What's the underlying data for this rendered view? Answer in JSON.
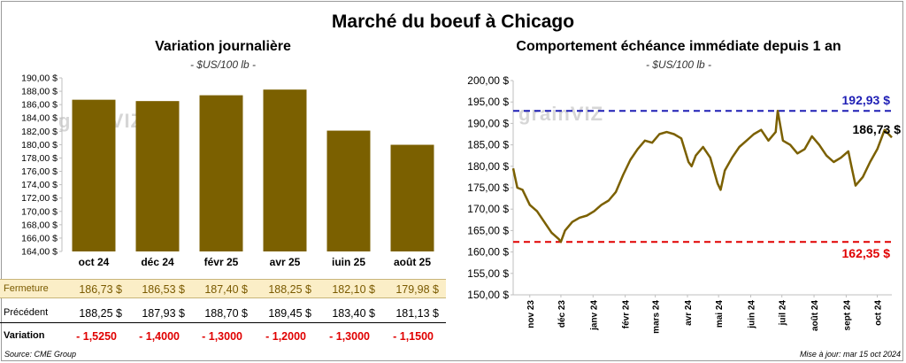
{
  "title": "Marché du boeuf à Chicago",
  "left": {
    "subtitle": "Variation journalière",
    "unit": "- $US/100 lb -",
    "watermark": "grainVIZ"
  },
  "right": {
    "subtitle": "Comportement échéance immédiate depuis 1 an",
    "unit": "- $US/100 lb -",
    "watermark": "grainVIZ",
    "max_label": "192,93 $",
    "last_label": "186,73 $",
    "min_label": "162,35 $"
  },
  "table": {
    "rows": [
      {
        "label": "Fermeture",
        "values": [
          "186,73  $",
          "186,53  $",
          "187,40  $",
          "188,25  $",
          "182,10  $",
          "179,98  $"
        ]
      },
      {
        "label": "Précédent",
        "values": [
          "188,25  $",
          "187,93  $",
          "188,70  $",
          "189,45  $",
          "183,40  $",
          "181,13  $"
        ]
      },
      {
        "label": "Variation",
        "values": [
          "- 1,5250",
          "- 1,4000",
          "- 1,3000",
          "- 1,2000",
          "- 1,3000",
          "- 1,1500"
        ]
      }
    ]
  },
  "footer": {
    "source": "Source: CME Group",
    "updated": "Mise à jour: mar 15 oct 2024"
  },
  "colors": {
    "bar": "#7b6000",
    "line": "#7b6000",
    "max_line": "#1f1fb5",
    "min_line": "#e00000",
    "close_row_bg": "#fbeec7"
  },
  "chart_data": [
    {
      "type": "bar",
      "title": "Variation journalière",
      "categories": [
        "oct 24",
        "déc 24",
        "févr 25",
        "avr 25",
        "juin 25",
        "août 25"
      ],
      "values": [
        186.73,
        186.53,
        187.4,
        188.25,
        182.1,
        179.98
      ],
      "ylim": [
        164,
        190
      ],
      "yticks": [
        "164,00 $",
        "166,00 $",
        "168,00 $",
        "170,00 $",
        "172,00 $",
        "174,00 $",
        "176,00 $",
        "178,00 $",
        "180,00 $",
        "182,00 $",
        "184,00 $",
        "186,00 $",
        "188,00 $",
        "190,00 $"
      ],
      "grid": false
    },
    {
      "type": "line",
      "title": "Comportement échéance immédiate depuis 1 an",
      "ylim": [
        150,
        200
      ],
      "yticks": [
        "150,00 $",
        "155,00 $",
        "160,00 $",
        "165,00 $",
        "170,00 $",
        "175,00 $",
        "180,00 $",
        "185,00 $",
        "190,00 $",
        "195,00 $",
        "200,00 $"
      ],
      "xticks": [
        "nov 23",
        "déc 23",
        "janv 24",
        "févr 24",
        "mars 24",
        "avr 24",
        "mai 24",
        "juin 24",
        "juil 24",
        "août 24",
        "sept 24",
        "oct 24"
      ],
      "max_value": 192.93,
      "min_value": 162.35,
      "last_value": 186.73,
      "x": [
        "2023-10-16",
        "2023-10-20",
        "2023-10-25",
        "2023-11-01",
        "2023-11-08",
        "2023-11-15",
        "2023-11-22",
        "2023-11-29",
        "2023-12-01",
        "2023-12-05",
        "2023-12-12",
        "2023-12-19",
        "2023-12-26",
        "2024-01-02",
        "2024-01-09",
        "2024-01-16",
        "2024-01-23",
        "2024-01-30",
        "2024-02-06",
        "2024-02-13",
        "2024-02-20",
        "2024-02-27",
        "2024-03-05",
        "2024-03-12",
        "2024-03-19",
        "2024-03-26",
        "2024-04-02",
        "2024-04-05",
        "2024-04-09",
        "2024-04-16",
        "2024-04-23",
        "2024-04-30",
        "2024-05-03",
        "2024-05-07",
        "2024-05-14",
        "2024-05-21",
        "2024-05-28",
        "2024-06-04",
        "2024-06-11",
        "2024-06-18",
        "2024-06-25",
        "2024-06-27",
        "2024-07-02",
        "2024-07-09",
        "2024-07-16",
        "2024-07-23",
        "2024-07-30",
        "2024-08-06",
        "2024-08-13",
        "2024-08-20",
        "2024-08-27",
        "2024-09-03",
        "2024-09-06",
        "2024-09-10",
        "2024-09-17",
        "2024-09-24",
        "2024-10-01",
        "2024-10-08",
        "2024-10-15"
      ],
      "y": [
        179.5,
        175.0,
        174.5,
        171.0,
        169.5,
        167.0,
        164.5,
        163.0,
        162.35,
        165.0,
        167.0,
        168.0,
        168.5,
        169.5,
        171.0,
        172.0,
        174.0,
        178.0,
        181.5,
        184.0,
        186.0,
        185.5,
        187.5,
        188.0,
        187.5,
        186.5,
        181.0,
        180.0,
        182.5,
        184.5,
        182.0,
        176.0,
        174.5,
        179.0,
        182.0,
        184.5,
        186.0,
        187.5,
        188.5,
        186.0,
        188.0,
        192.93,
        186.0,
        185.0,
        183.0,
        184.0,
        187.0,
        185.0,
        182.5,
        181.0,
        182.0,
        183.5,
        180.0,
        175.5,
        177.5,
        181.0,
        184.0,
        188.5,
        186.73
      ]
    }
  ]
}
